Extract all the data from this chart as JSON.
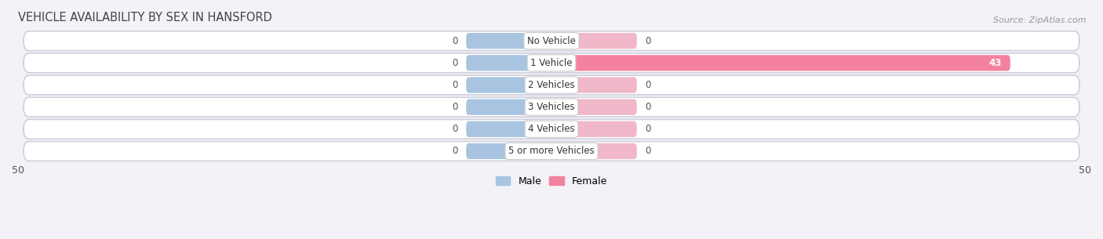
{
  "title": "VEHICLE AVAILABILITY BY SEX IN HANSFORD",
  "source": "Source: ZipAtlas.com",
  "categories": [
    "No Vehicle",
    "1 Vehicle",
    "2 Vehicles",
    "3 Vehicles",
    "4 Vehicles",
    "5 or more Vehicles"
  ],
  "male_values": [
    0,
    0,
    0,
    0,
    0,
    0
  ],
  "female_values": [
    0,
    43,
    0,
    0,
    0,
    0
  ],
  "male_color": "#a8c4e0",
  "female_color": "#f4819e",
  "female_color_dim": "#f0b8c8",
  "xlim": 50,
  "zero_stub": 8,
  "background_color": "#f2f2f7",
  "row_bg_color": "#e8e8f0",
  "row_bg_dark": "#dedee8",
  "title_fontsize": 10.5,
  "source_fontsize": 8,
  "legend_male": "Male",
  "legend_female": "Female",
  "label_fontsize": 8.5,
  "value_fontsize": 8.5
}
